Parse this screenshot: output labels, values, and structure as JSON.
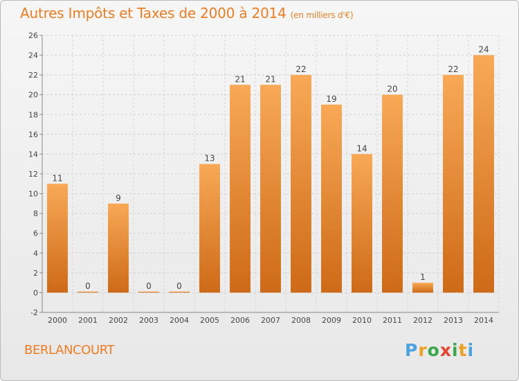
{
  "header": {
    "title": "Autres Impôts et Taxes de 2000 à 2014",
    "unit": "(en milliers d'€)"
  },
  "footer": {
    "commune": "BERLANCOURT",
    "brand": "Proxiti"
  },
  "colors": {
    "accent": "#ee7d22",
    "bar_light": "#f7a95a",
    "bar_dark": "#cd6a17"
  },
  "chart_data": {
    "type": "bar",
    "categories": [
      "2000",
      "2001",
      "2002",
      "2003",
      "2004",
      "2005",
      "2006",
      "2007",
      "2008",
      "2009",
      "2010",
      "2011",
      "2012",
      "2013",
      "2014"
    ],
    "values": [
      11,
      0,
      9,
      0,
      0,
      13,
      21,
      21,
      22,
      19,
      14,
      20,
      1,
      22,
      24
    ],
    "ylim": [
      -2,
      26
    ],
    "yticks": [
      -2,
      0,
      2,
      4,
      6,
      8,
      10,
      12,
      14,
      16,
      18,
      20,
      22,
      24,
      26
    ],
    "grid": true,
    "title": "Autres Impôts et Taxes de 2000 à 2014",
    "xlabel": "",
    "ylabel": ""
  }
}
